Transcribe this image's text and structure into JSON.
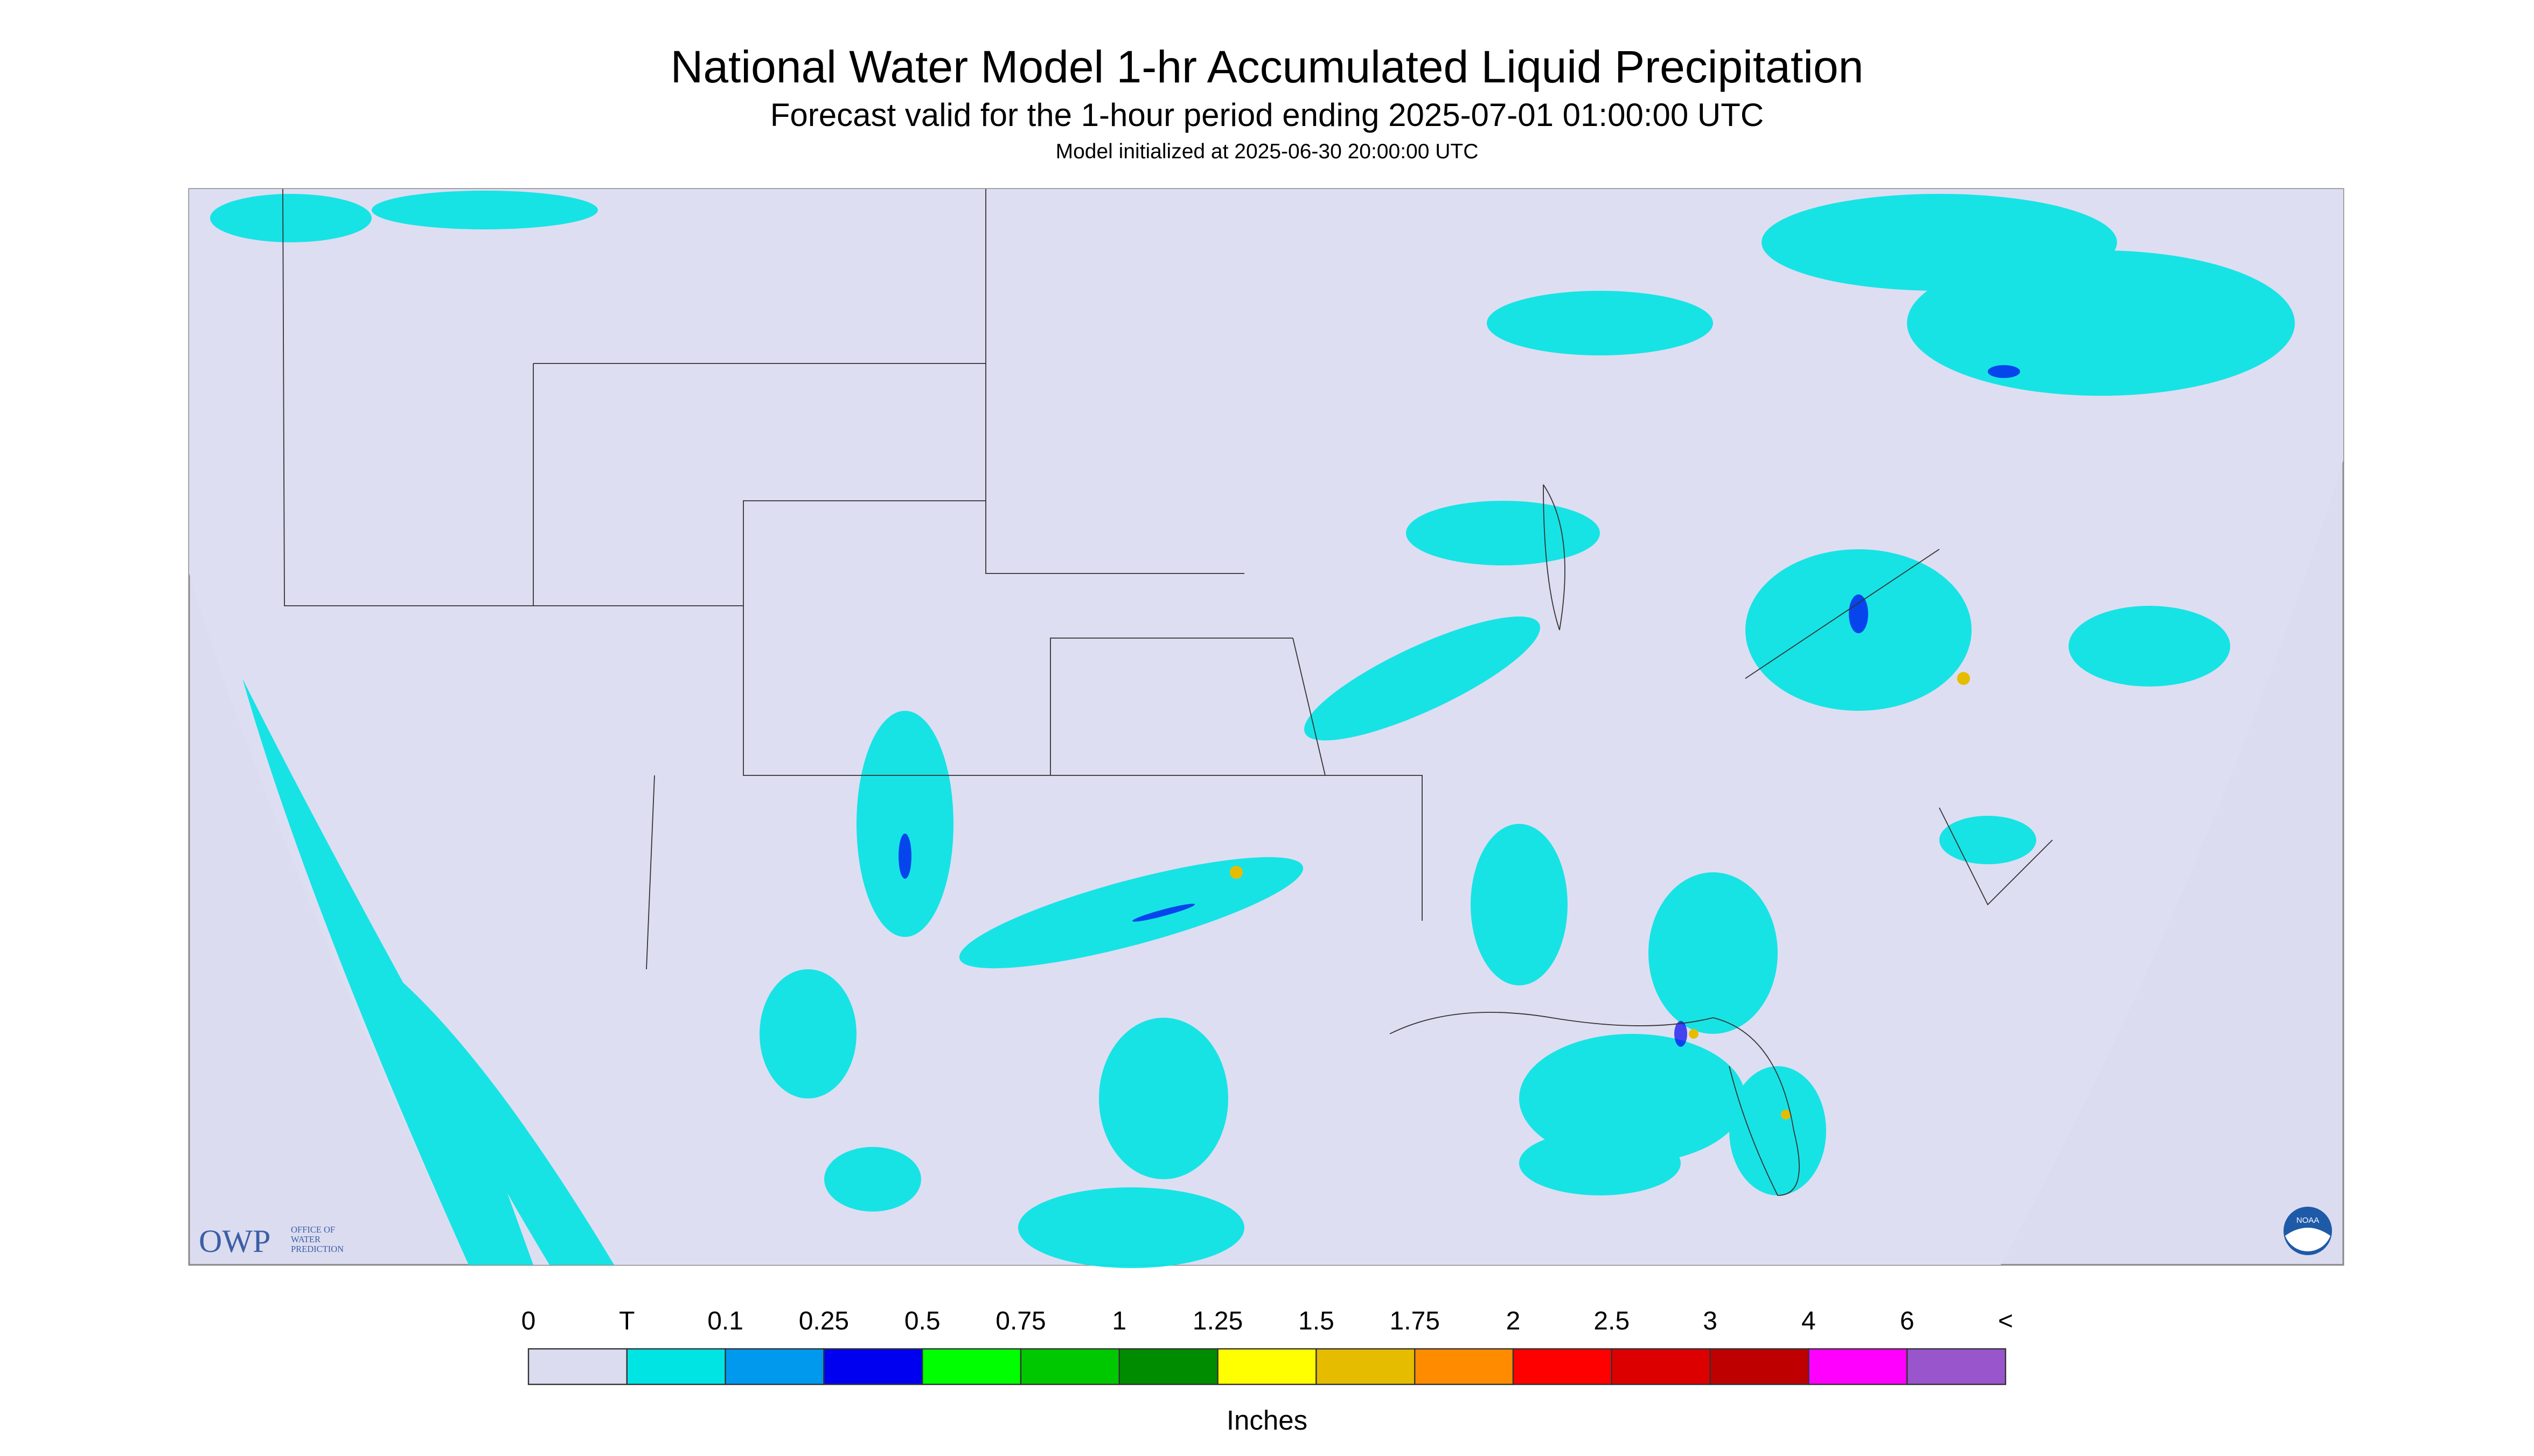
{
  "header": {
    "title": "National Water Model 1-hr Accumulated Liquid Precipitation",
    "subtitle": "Forecast valid for the 1-hour period ending 2025-07-01 01:00:00 UTC",
    "note": "Model initialized at 2025-06-30 20:00:00 UTC"
  },
  "legend": {
    "labels": [
      "0",
      "T",
      "0.1",
      "0.25",
      "0.5",
      "0.75",
      "1",
      "1.25",
      "1.5",
      "1.75",
      "2",
      "2.5",
      "3",
      "4",
      "6",
      "<"
    ],
    "colors": [
      "#dcdcf0",
      "#00e4e4",
      "#0099ee",
      "#0000f0",
      "#00ff00",
      "#00c800",
      "#008c00",
      "#ffff00",
      "#e6bc00",
      "#ff8c00",
      "#ff0000",
      "#dc0000",
      "#be0000",
      "#ff00ff",
      "#9955cc"
    ],
    "unit": "Inches"
  },
  "logo": {
    "owp": "OWP",
    "owp_lines": [
      "OFFICE OF",
      "WATER",
      "PREDICTION"
    ],
    "noaa": "NOAA"
  }
}
